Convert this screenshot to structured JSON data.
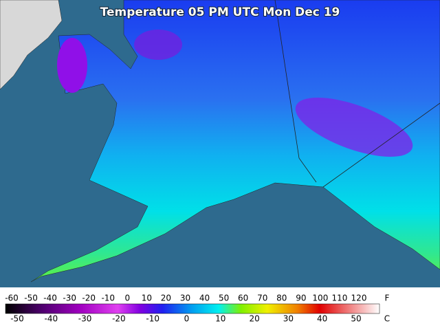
{
  "title": "Temperature 05 PM UTC Mon Dec 19",
  "legend": {
    "fahrenheit": {
      "unit": "F",
      "labels": [
        -60,
        -50,
        -40,
        -30,
        -20,
        -10,
        0,
        10,
        20,
        30,
        40,
        50,
        60,
        70,
        80,
        90,
        100,
        110,
        120
      ]
    },
    "celsius": {
      "unit": "C",
      "labels": [
        -50,
        -40,
        -30,
        -20,
        -10,
        0,
        10,
        20,
        30,
        40,
        50
      ]
    }
  }
}
